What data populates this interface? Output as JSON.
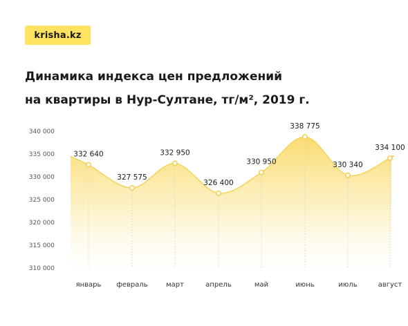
{
  "brand": {
    "logo_text": "krisha.kz"
  },
  "heading": {
    "line1": "Динамика индекса цен предложений",
    "line2": "на квартиры в Нур-Султане, тг/м², 2019 г."
  },
  "chart_data": {
    "type": "area",
    "categories": [
      "январь",
      "февраль",
      "март",
      "апрель",
      "май",
      "июнь",
      "июль",
      "август"
    ],
    "values": [
      332640,
      327575,
      332950,
      326400,
      330950,
      338775,
      330340,
      334100
    ],
    "value_labels": [
      "332 640",
      "327 575",
      "332 950",
      "326 400",
      "330 950",
      "338 775",
      "330 340",
      "334 100"
    ],
    "ylim": [
      310000,
      340000
    ],
    "y_ticks": [
      310000,
      315000,
      320000,
      325000,
      330000,
      335000,
      340000
    ],
    "y_tick_labels": [
      "310 000",
      "315 000",
      "320 000",
      "325 000",
      "330 000",
      "335 000",
      "340 000"
    ],
    "grid": false,
    "colors": {
      "area_top": "#f9d965",
      "area_bottom": "#fffaf0",
      "line": "#f5d45b",
      "marker_stroke": "#f5cf55",
      "marker_fill": "#ffffff",
      "drop_line": "#d0d0d0"
    }
  }
}
